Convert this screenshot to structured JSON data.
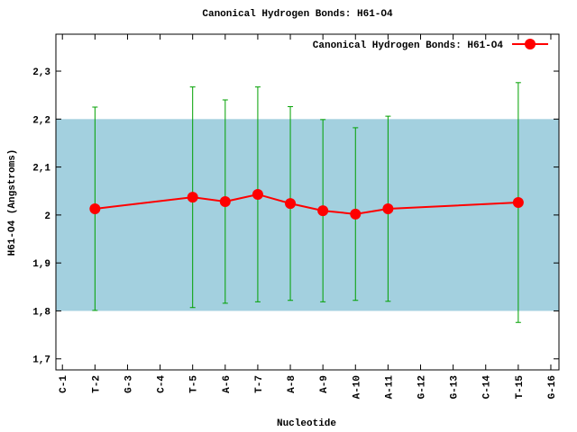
{
  "chart_data": {
    "type": "line",
    "title": "Canonical Hydrogen Bonds: H61-O4",
    "xlabel": "Nucleotide",
    "ylabel": "H61-O4 (Angstroms)",
    "x": [
      2,
      5,
      6,
      7,
      8,
      9,
      10,
      11,
      15
    ],
    "series": [
      {
        "name": "Canonical Hydrogen Bonds: H61-O4",
        "color": "#ff0000",
        "error_color": "#00a000",
        "values": [
          2.013,
          2.037,
          2.028,
          2.043,
          2.024,
          2.009,
          2.002,
          2.013,
          2.026
        ],
        "errors": [
          0.212,
          0.23,
          0.212,
          0.224,
          0.202,
          0.19,
          0.18,
          0.193,
          0.25
        ]
      }
    ],
    "band": [
      1.8,
      2.2
    ],
    "band_color": "#a3d0df",
    "xlim": [
      0.8,
      16.25
    ],
    "xticks": [
      {
        "value": 1,
        "label": "C-1"
      },
      {
        "value": 2,
        "label": "T-2"
      },
      {
        "value": 3,
        "label": "G-3"
      },
      {
        "value": 4,
        "label": "C-4"
      },
      {
        "value": 5,
        "label": "T-5"
      },
      {
        "value": 6,
        "label": "A-6"
      },
      {
        "value": 7,
        "label": "T-7"
      },
      {
        "value": 8,
        "label": "A-8"
      },
      {
        "value": 9,
        "label": "A-9"
      },
      {
        "value": 10,
        "label": "A-10"
      },
      {
        "value": 11,
        "label": "A-11"
      },
      {
        "value": 12,
        "label": "G-12"
      },
      {
        "value": 13,
        "label": "G-13"
      },
      {
        "value": 14,
        "label": "C-14"
      },
      {
        "value": 15,
        "label": "T-15"
      },
      {
        "value": 16,
        "label": "G-16"
      }
    ],
    "ylim": [
      1.677,
      2.377
    ],
    "yticks": [
      {
        "value": 1.7,
        "label": "1,7"
      },
      {
        "value": 1.8,
        "label": "1,8"
      },
      {
        "value": 1.9,
        "label": "1,9"
      },
      2,
      {
        "value": 2.1,
        "label": "2,1"
      },
      {
        "value": 2.2,
        "label": "2,2"
      },
      {
        "value": 2.3,
        "label": "2,3"
      }
    ],
    "legend": "top-right",
    "grid": false
  }
}
